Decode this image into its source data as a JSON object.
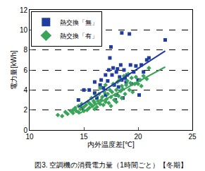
{
  "chart_data": {
    "type": "scatter",
    "title": "図3. 空調機の消費電力量（1時間ごと）【冬期】",
    "x_label": "内外温度差[℃]",
    "y_label": "電力量[kWh]",
    "xlim": [
      10,
      25
    ],
    "xticks": [
      10,
      15,
      20,
      25
    ],
    "ylim": [
      0,
      12
    ],
    "yticks": [
      0,
      2,
      4,
      6,
      8,
      10,
      12
    ],
    "grid": true,
    "legend": "upper left",
    "series": [
      {
        "name": "熱交換「無」",
        "color": "#1f3c9e",
        "marker": "square",
        "x": [
          14.5,
          14.8,
          15.0,
          15.5,
          16.0,
          16.0,
          16.2,
          16.5,
          16.6,
          16.8,
          17.0,
          17.0,
          17.2,
          17.3,
          17.4,
          17.5,
          17.6,
          17.7,
          17.8,
          17.9,
          18.0,
          18.0,
          18.1,
          18.2,
          18.3,
          18.4,
          18.5,
          18.5,
          18.6,
          18.7,
          18.8,
          18.9,
          19.0,
          19.2,
          19.3,
          19.4,
          19.6,
          19.8,
          20.0,
          20.1,
          20.3,
          20.5,
          20.8,
          21.0,
          22.5
        ],
        "values": [
          3.0,
          2.2,
          4.0,
          4.0,
          4.8,
          3.7,
          3.2,
          4.5,
          5.0,
          4.2,
          5.5,
          3.5,
          4.9,
          6.0,
          7.2,
          8.3,
          5.5,
          6.2,
          4.5,
          3.0,
          5.8,
          3.5,
          6.1,
          4.3,
          5.3,
          6.5,
          5.0,
          9.7,
          3.2,
          6.0,
          5.2,
          4.8,
          5.5,
          9.6,
          6.5,
          4.6,
          5.8,
          6.4,
          5.0,
          3.5,
          6.5,
          5.8,
          7.0,
          7.2,
          9.0
        ]
      },
      {
        "name": "熱交換「有」",
        "color": "#3aa55a",
        "marker": "diamond",
        "x": [
          12.6,
          13.0,
          13.3,
          13.5,
          13.8,
          14.0,
          14.0,
          14.2,
          14.3,
          14.5,
          14.5,
          14.7,
          14.8,
          15.0,
          15.0,
          15.2,
          15.3,
          15.4,
          15.5,
          15.6,
          15.7,
          15.8,
          15.9,
          16.0,
          16.0,
          16.1,
          16.2,
          16.3,
          16.4,
          16.5,
          16.5,
          16.6,
          16.7,
          16.8,
          16.9,
          17.0,
          17.0,
          17.1,
          17.2,
          17.3,
          17.4,
          17.5,
          17.5,
          17.6,
          17.7,
          17.8,
          17.9,
          18.0,
          18.0,
          18.1,
          18.2,
          18.3,
          18.4,
          18.5,
          18.5,
          18.6,
          18.7,
          18.8,
          18.9,
          19.0,
          19.1,
          19.2,
          19.3,
          19.4,
          19.5,
          19.7,
          19.8,
          20.0,
          20.2,
          20.3,
          20.5,
          20.8,
          21.0
        ],
        "values": [
          1.5,
          1.4,
          1.8,
          1.6,
          1.9,
          2.0,
          1.7,
          2.2,
          1.9,
          2.4,
          1.8,
          2.1,
          2.6,
          2.3,
          1.9,
          2.5,
          2.0,
          2.8,
          2.2,
          2.6,
          3.2,
          2.4,
          2.9,
          2.1,
          2.7,
          3.4,
          2.3,
          2.9,
          3.6,
          2.6,
          4.2,
          3.0,
          3.3,
          2.5,
          3.8,
          2.8,
          4.5,
          3.1,
          3.6,
          2.7,
          4.0,
          3.3,
          2.4,
          3.8,
          4.6,
          3.0,
          3.5,
          4.0,
          2.8,
          4.8,
          3.4,
          5.0,
          3.9,
          3.2,
          4.4,
          4.1,
          5.4,
          3.6,
          4.5,
          4.9,
          5.6,
          4.0,
          4.7,
          5.2,
          3.8,
          4.6,
          5.3,
          4.6,
          5.0,
          4.4,
          5.4,
          5.1,
          6.2
        ]
      },
      {
        "type": "line",
        "color": "#1f3c9e",
        "x": [
          14.5,
          22.5
        ],
        "values": [
          2.3,
          7.9
        ]
      },
      {
        "type": "line",
        "color": "#3aa55a",
        "x": [
          14.5,
          22.5
        ],
        "values": [
          1.6,
          6.3
        ]
      }
    ]
  }
}
